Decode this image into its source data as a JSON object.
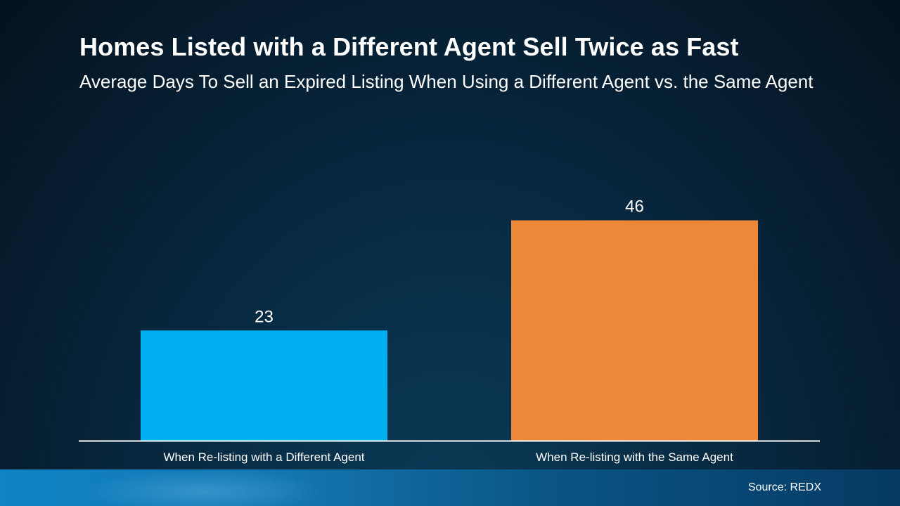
{
  "header": {
    "title": "Homes Listed with a Different Agent Sell Twice as Fast",
    "subtitle": "Average Days To Sell an Expired Listing When Using a Different Agent vs. the Same Agent"
  },
  "chart_data": {
    "type": "bar",
    "title": "Homes Listed with a Different Agent Sell Twice as Fast",
    "subtitle": "Average Days To Sell an Expired Listing When Using a Different Agent vs. the Same Agent",
    "categories": [
      "When Re-listing with a Different Agent",
      "When Re-listing with the Same Agent"
    ],
    "values": [
      23,
      46
    ],
    "data_labels": [
      "23",
      "46"
    ],
    "colors": [
      "#00b0f0",
      "#ed8838"
    ],
    "ylim": [
      0,
      54
    ],
    "xlabel": "",
    "ylabel": "",
    "grid": false,
    "legend": "none"
  },
  "footer": {
    "source": "Source: REDX"
  }
}
